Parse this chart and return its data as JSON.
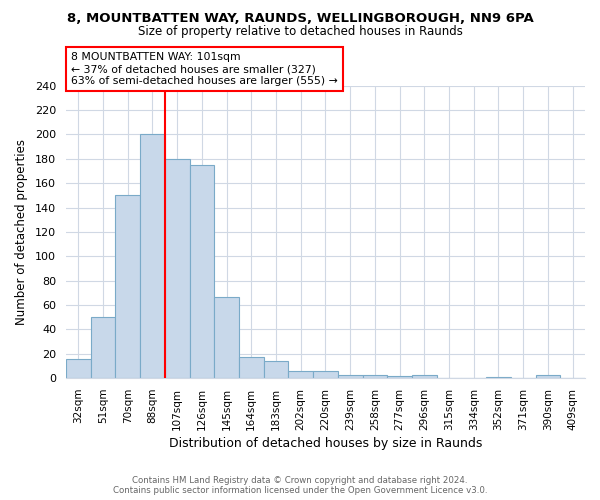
{
  "title1": "8, MOUNTBATTEN WAY, RAUNDS, WELLINGBOROUGH, NN9 6PA",
  "title2": "Size of property relative to detached houses in Raunds",
  "xlabel": "Distribution of detached houses by size in Raunds",
  "ylabel": "Number of detached properties",
  "categories": [
    "32sqm",
    "51sqm",
    "70sqm",
    "88sqm",
    "107sqm",
    "126sqm",
    "145sqm",
    "164sqm",
    "183sqm",
    "202sqm",
    "220sqm",
    "239sqm",
    "258sqm",
    "277sqm",
    "296sqm",
    "315sqm",
    "334sqm",
    "352sqm",
    "371sqm",
    "390sqm",
    "409sqm"
  ],
  "values": [
    16,
    50,
    150,
    200,
    180,
    175,
    67,
    17,
    14,
    6,
    6,
    3,
    3,
    2,
    3,
    0,
    0,
    1,
    0,
    3,
    0
  ],
  "bar_color": "#c8d8ea",
  "bar_edge_color": "#7aaac8",
  "vline_color": "red",
  "vline_x_index": 3.5,
  "annotation_title": "8 MOUNTBATTEN WAY: 101sqm",
  "annotation_line1": "← 37% of detached houses are smaller (327)",
  "annotation_line2": "63% of semi-detached houses are larger (555) →",
  "annotation_box_color": "white",
  "annotation_box_edge": "red",
  "ylim": [
    0,
    240
  ],
  "yticks": [
    0,
    20,
    40,
    60,
    80,
    100,
    120,
    140,
    160,
    180,
    200,
    220,
    240
  ],
  "footer1": "Contains HM Land Registry data © Crown copyright and database right 2024.",
  "footer2": "Contains public sector information licensed under the Open Government Licence v3.0.",
  "bg_color": "#ffffff",
  "grid_color": "#d0d8e4",
  "title1_fontsize": 9.5,
  "title2_fontsize": 8.5
}
